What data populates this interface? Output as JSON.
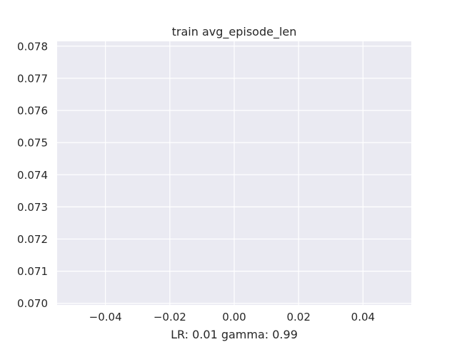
{
  "chart_data": {
    "type": "line",
    "title": "train avg_episode_len",
    "xlabel": "LR: 0.01 gamma: 0.99",
    "ylabel": "",
    "xlim": [
      -0.055,
      0.055
    ],
    "ylim": [
      0.06995,
      0.07815
    ],
    "x_ticks": [
      -0.04,
      -0.02,
      0.0,
      0.02,
      0.04
    ],
    "x_tick_labels": [
      "−0.04",
      "−0.02",
      "0.00",
      "0.02",
      "0.04"
    ],
    "y_ticks": [
      0.07,
      0.071,
      0.072,
      0.073,
      0.074,
      0.075,
      0.076,
      0.077,
      0.078
    ],
    "y_tick_labels": [
      "0.070",
      "0.071",
      "0.072",
      "0.073",
      "0.074",
      "0.075",
      "0.076",
      "0.077",
      "0.078"
    ],
    "grid": true,
    "legend": "none",
    "series": [],
    "colors": {
      "plot_background": "#eaeaf2",
      "grid": "#ffffff",
      "text": "#262626"
    }
  }
}
